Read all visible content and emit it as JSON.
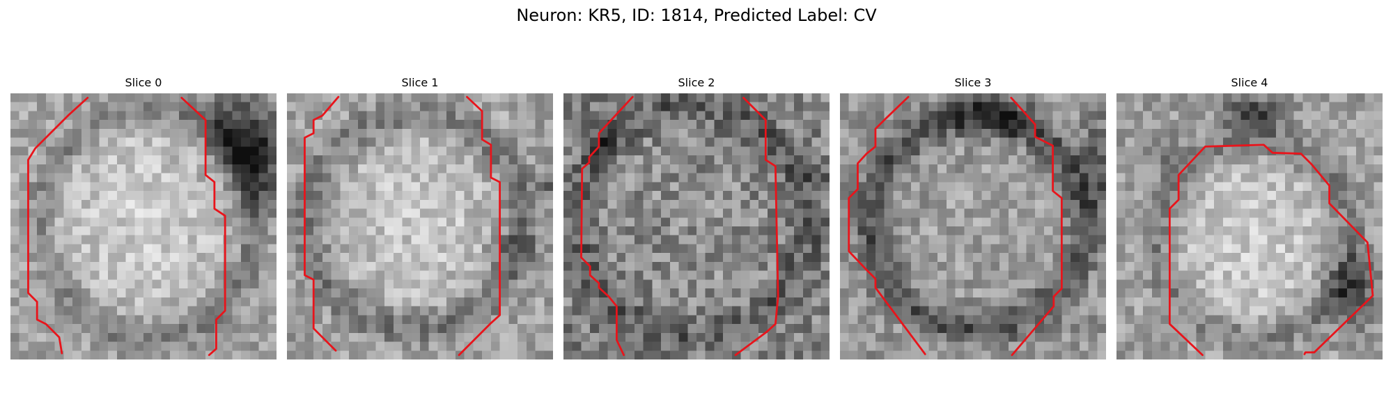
{
  "figure": {
    "title": "Neuron: KR5, ID: 1814, Predicted Label: CV"
  },
  "panels": [
    {
      "title": "Slice 0"
    },
    {
      "title": "Slice 1"
    },
    {
      "title": "Slice 2"
    },
    {
      "title": "Slice 3"
    },
    {
      "title": "Slice 4"
    }
  ],
  "colors": {
    "contour": "#e8141b",
    "background": "#ffffff"
  }
}
